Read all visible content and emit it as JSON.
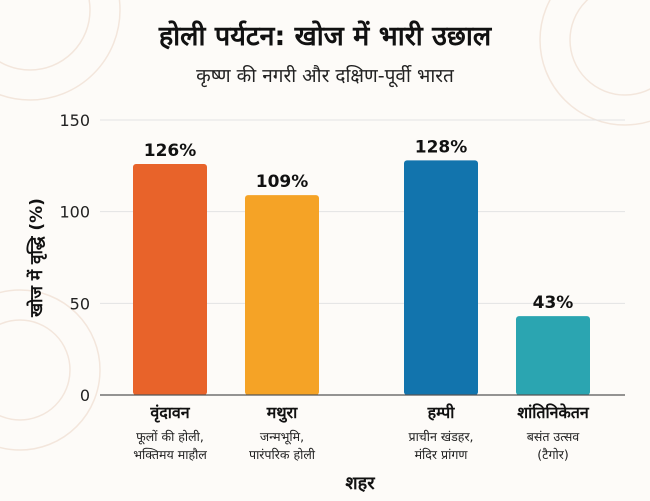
{
  "chart_data": {
    "type": "bar",
    "title": "होली पर्यटन: खोज में भारी उछाल",
    "subtitle": "कृष्ण की नगरी और दक्षिण-पूर्वी भारत",
    "xlabel": "शहर",
    "ylabel": "खोज में वृद्धि (%)",
    "ylim": [
      0,
      150
    ],
    "yticks": [
      0,
      50,
      100,
      150
    ],
    "grid": true,
    "categories": [
      "वृंदावन",
      "मथुरा",
      "हम्पी",
      "शांतिनिकेतन"
    ],
    "category_notes": [
      [
        "फूलों की होली,",
        "भक्तिमय माहौल"
      ],
      [
        "जन्मभूमि,",
        "पारंपरिक होली"
      ],
      [
        "प्राचीन खंडहर,",
        "मंदिर प्रांगण"
      ],
      [
        "बसंत उत्सव",
        "(टैगोर)"
      ]
    ],
    "values": [
      126,
      109,
      128,
      43
    ],
    "value_labels": [
      "126%",
      "109%",
      "128%",
      "43%"
    ],
    "colors": [
      "#e8632a",
      "#f5a326",
      "#1274ad",
      "#2ba5b1"
    ]
  }
}
